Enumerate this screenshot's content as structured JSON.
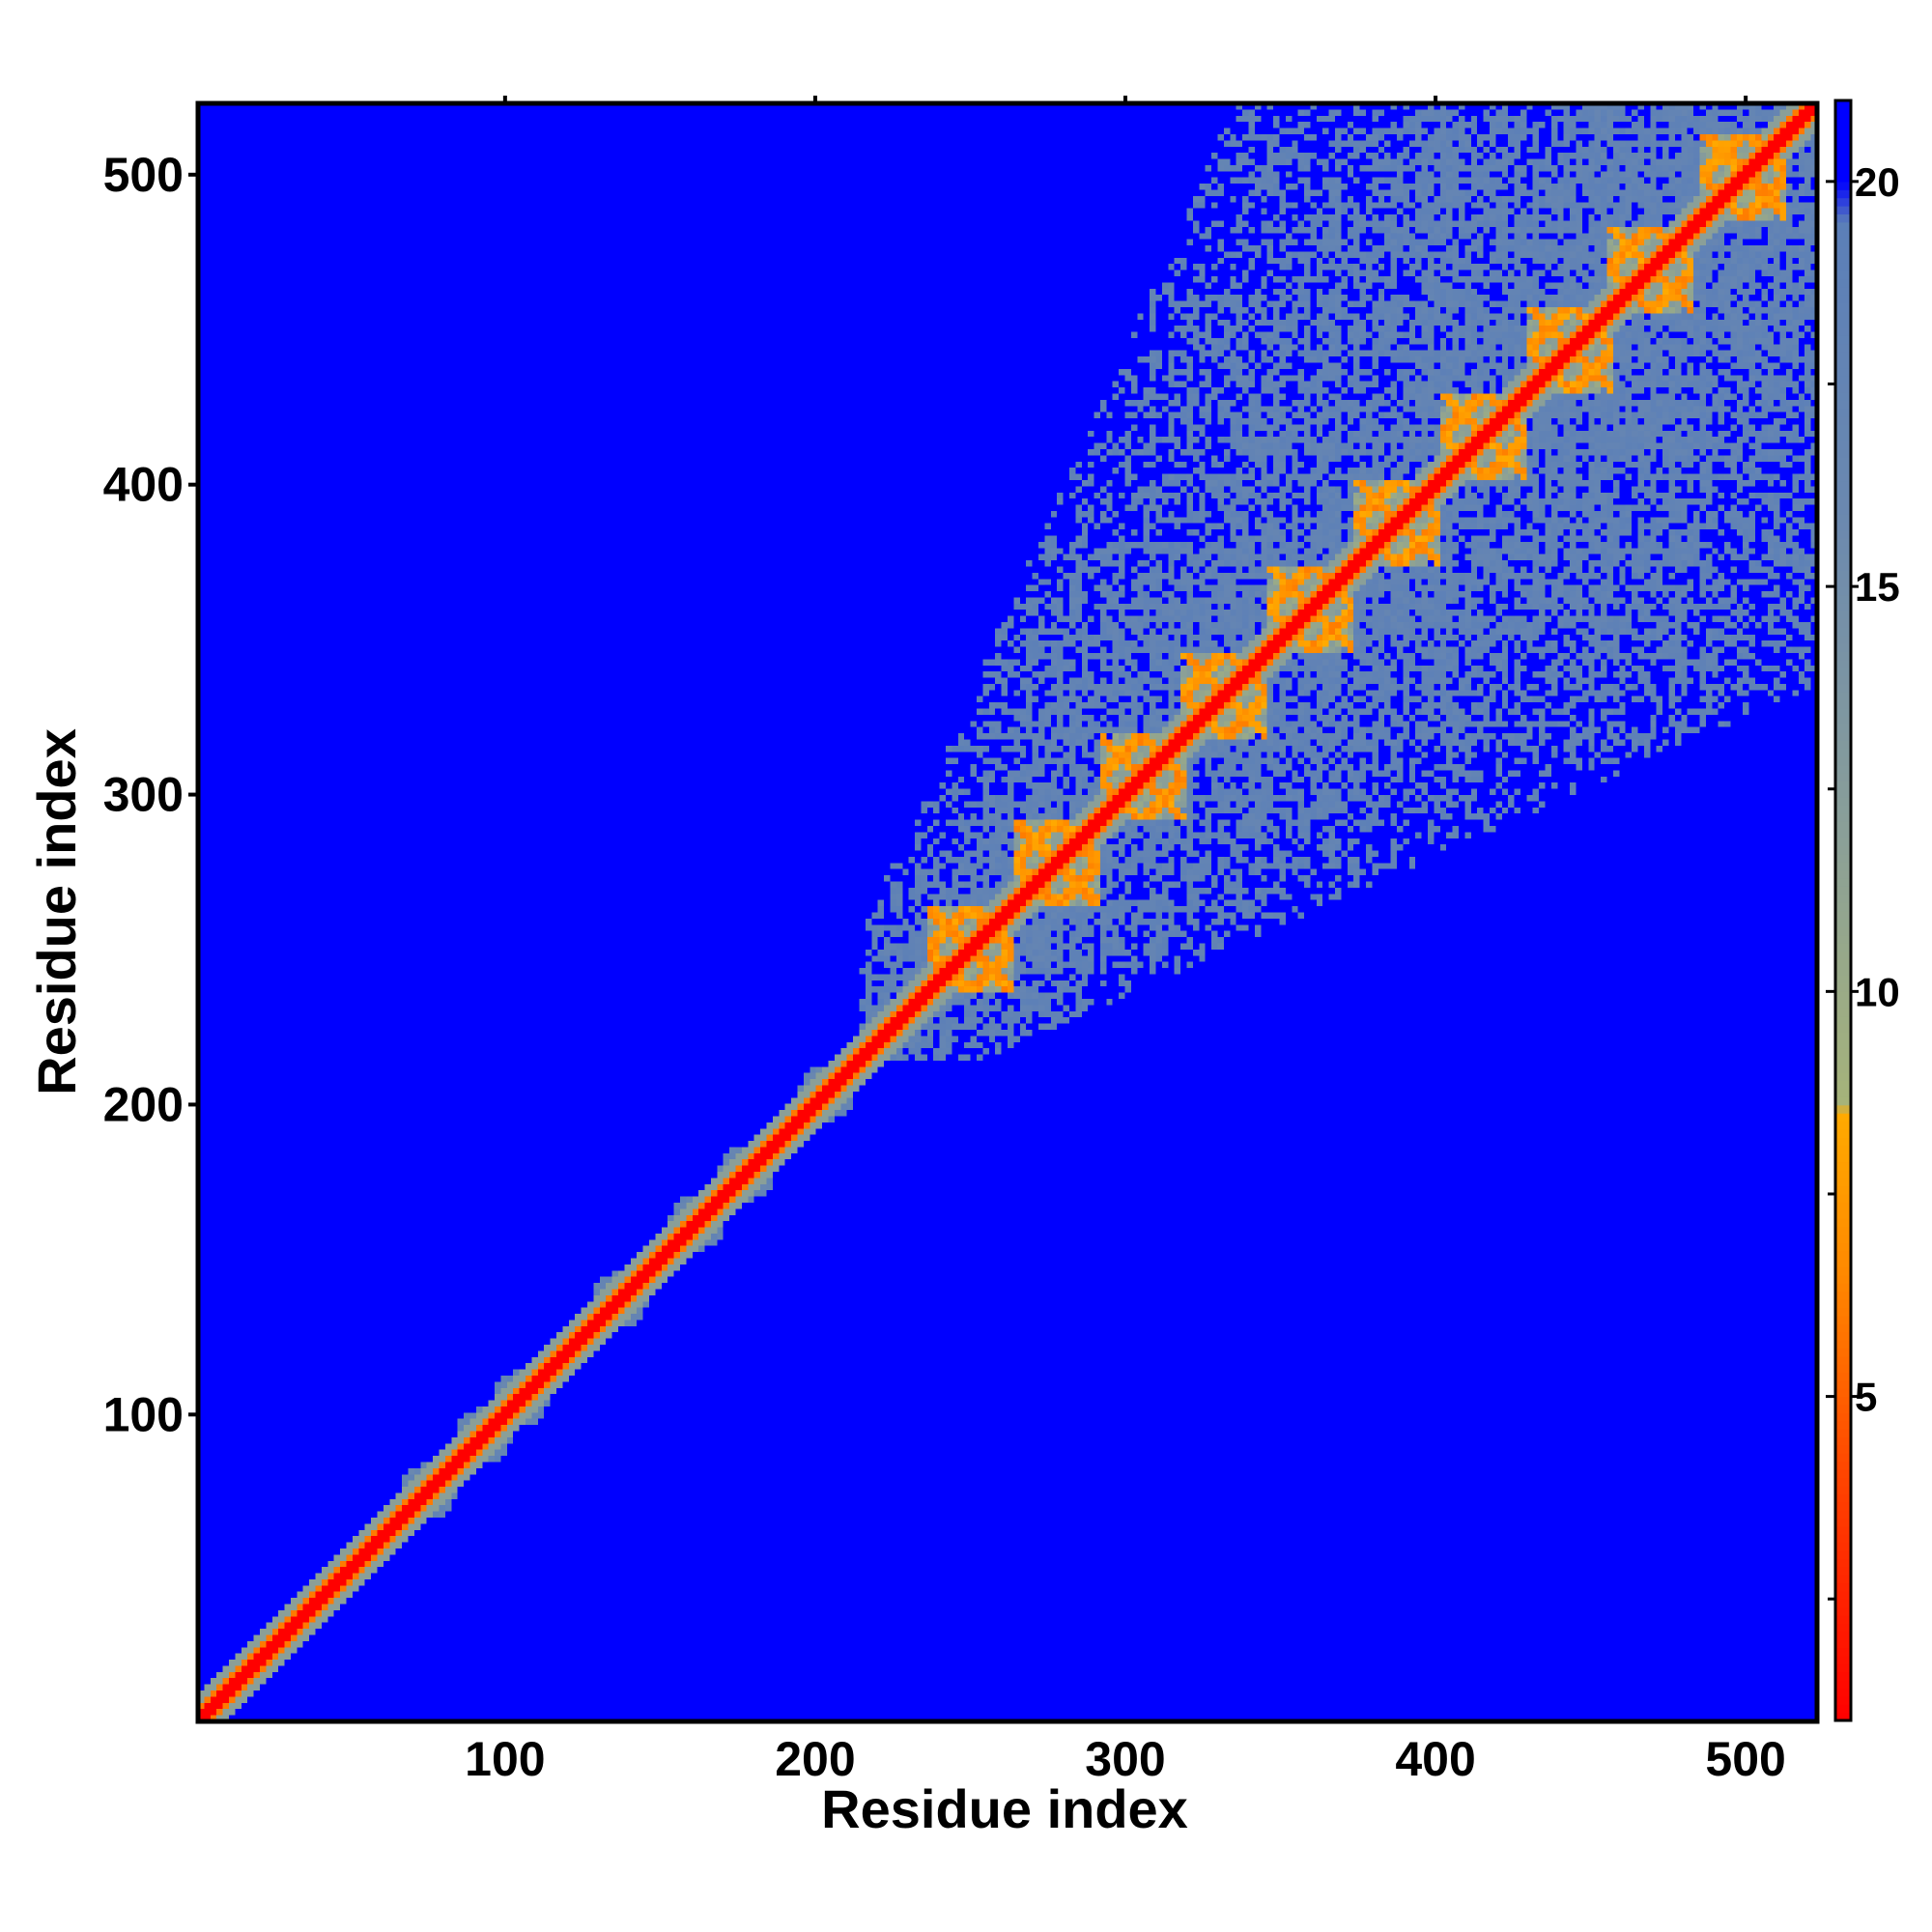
{
  "chart_data": {
    "type": "heatmap",
    "title": "",
    "xlabel": "Residue index",
    "ylabel": "Residue index",
    "xlim": [
      1,
      523
    ],
    "ylim": [
      1,
      523
    ],
    "x_ticks": [
      100,
      200,
      300,
      400,
      500
    ],
    "y_ticks": [
      100,
      200,
      300,
      400,
      500
    ],
    "colorbar": {
      "range": [
        1,
        21
      ],
      "ticks": [
        5,
        10,
        15,
        20
      ],
      "stops": [
        {
          "value": 1,
          "color": "#ff0000"
        },
        {
          "value": 4,
          "color": "#ff4400"
        },
        {
          "value": 6.5,
          "color": "#ff8800"
        },
        {
          "value": 8.5,
          "color": "#ffaa00"
        },
        {
          "value": 8.6,
          "color": "#a6b37a"
        },
        {
          "value": 12,
          "color": "#8a9f98"
        },
        {
          "value": 16,
          "color": "#6a88b0"
        },
        {
          "value": 19.5,
          "color": "#5b7fb8"
        },
        {
          "value": 20,
          "color": "#0000ff"
        },
        {
          "value": 21,
          "color": "#0000ff"
        }
      ]
    },
    "structure": {
      "diagonal_value": 1,
      "background_value": 21,
      "compact_region_start": 225,
      "compact_region_end": 523,
      "compact_region_value": 18,
      "helix_repeat_period": 28,
      "helix_repeat_centers": [
        250,
        278,
        305,
        332,
        360,
        388,
        416,
        444,
        470,
        500
      ],
      "n_terminal_blob_centers": [
        75,
        93,
        105,
        137,
        162,
        178,
        204,
        236
      ]
    }
  }
}
